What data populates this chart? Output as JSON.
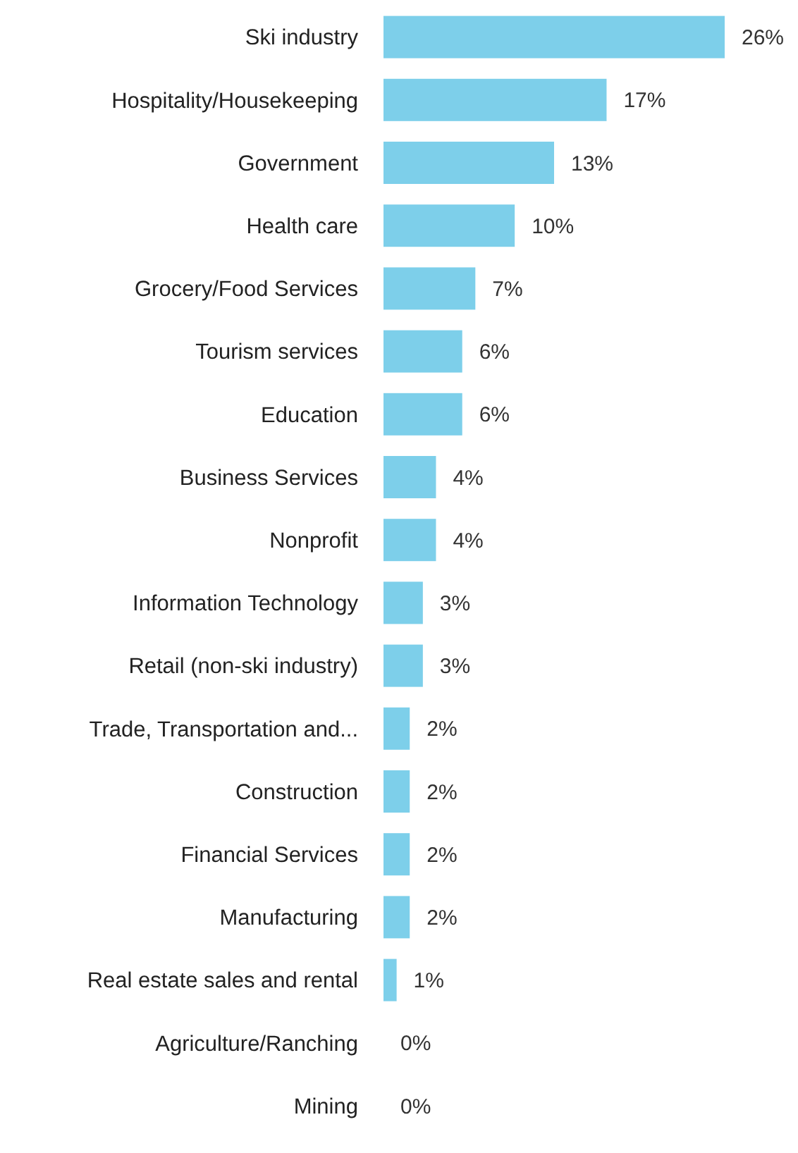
{
  "chart_data": {
    "type": "bar",
    "orientation": "horizontal",
    "categories": [
      "Ski industry",
      "Hospitality/Housekeeping",
      "Government",
      "Health care",
      "Grocery/Food Services",
      "Tourism services",
      "Education",
      "Business Services",
      "Nonprofit",
      "Information Technology",
      "Retail (non-ski industry)",
      "Trade, Transportation and...",
      "Construction",
      "Financial Services",
      "Manufacturing",
      "Real estate sales and rental",
      "Agriculture/Ranching",
      "Mining"
    ],
    "values": [
      26,
      17,
      13,
      10,
      7,
      6,
      6,
      4,
      4,
      3,
      3,
      2,
      2,
      2,
      2,
      1,
      0,
      0
    ],
    "value_labels": [
      "26%",
      "17%",
      "13%",
      "10%",
      "7%",
      "6%",
      "6%",
      "4%",
      "4%",
      "3%",
      "3%",
      "2%",
      "2%",
      "2%",
      "2%",
      "1%",
      "0%",
      "0%"
    ],
    "color": "#7dcfea"
  }
}
